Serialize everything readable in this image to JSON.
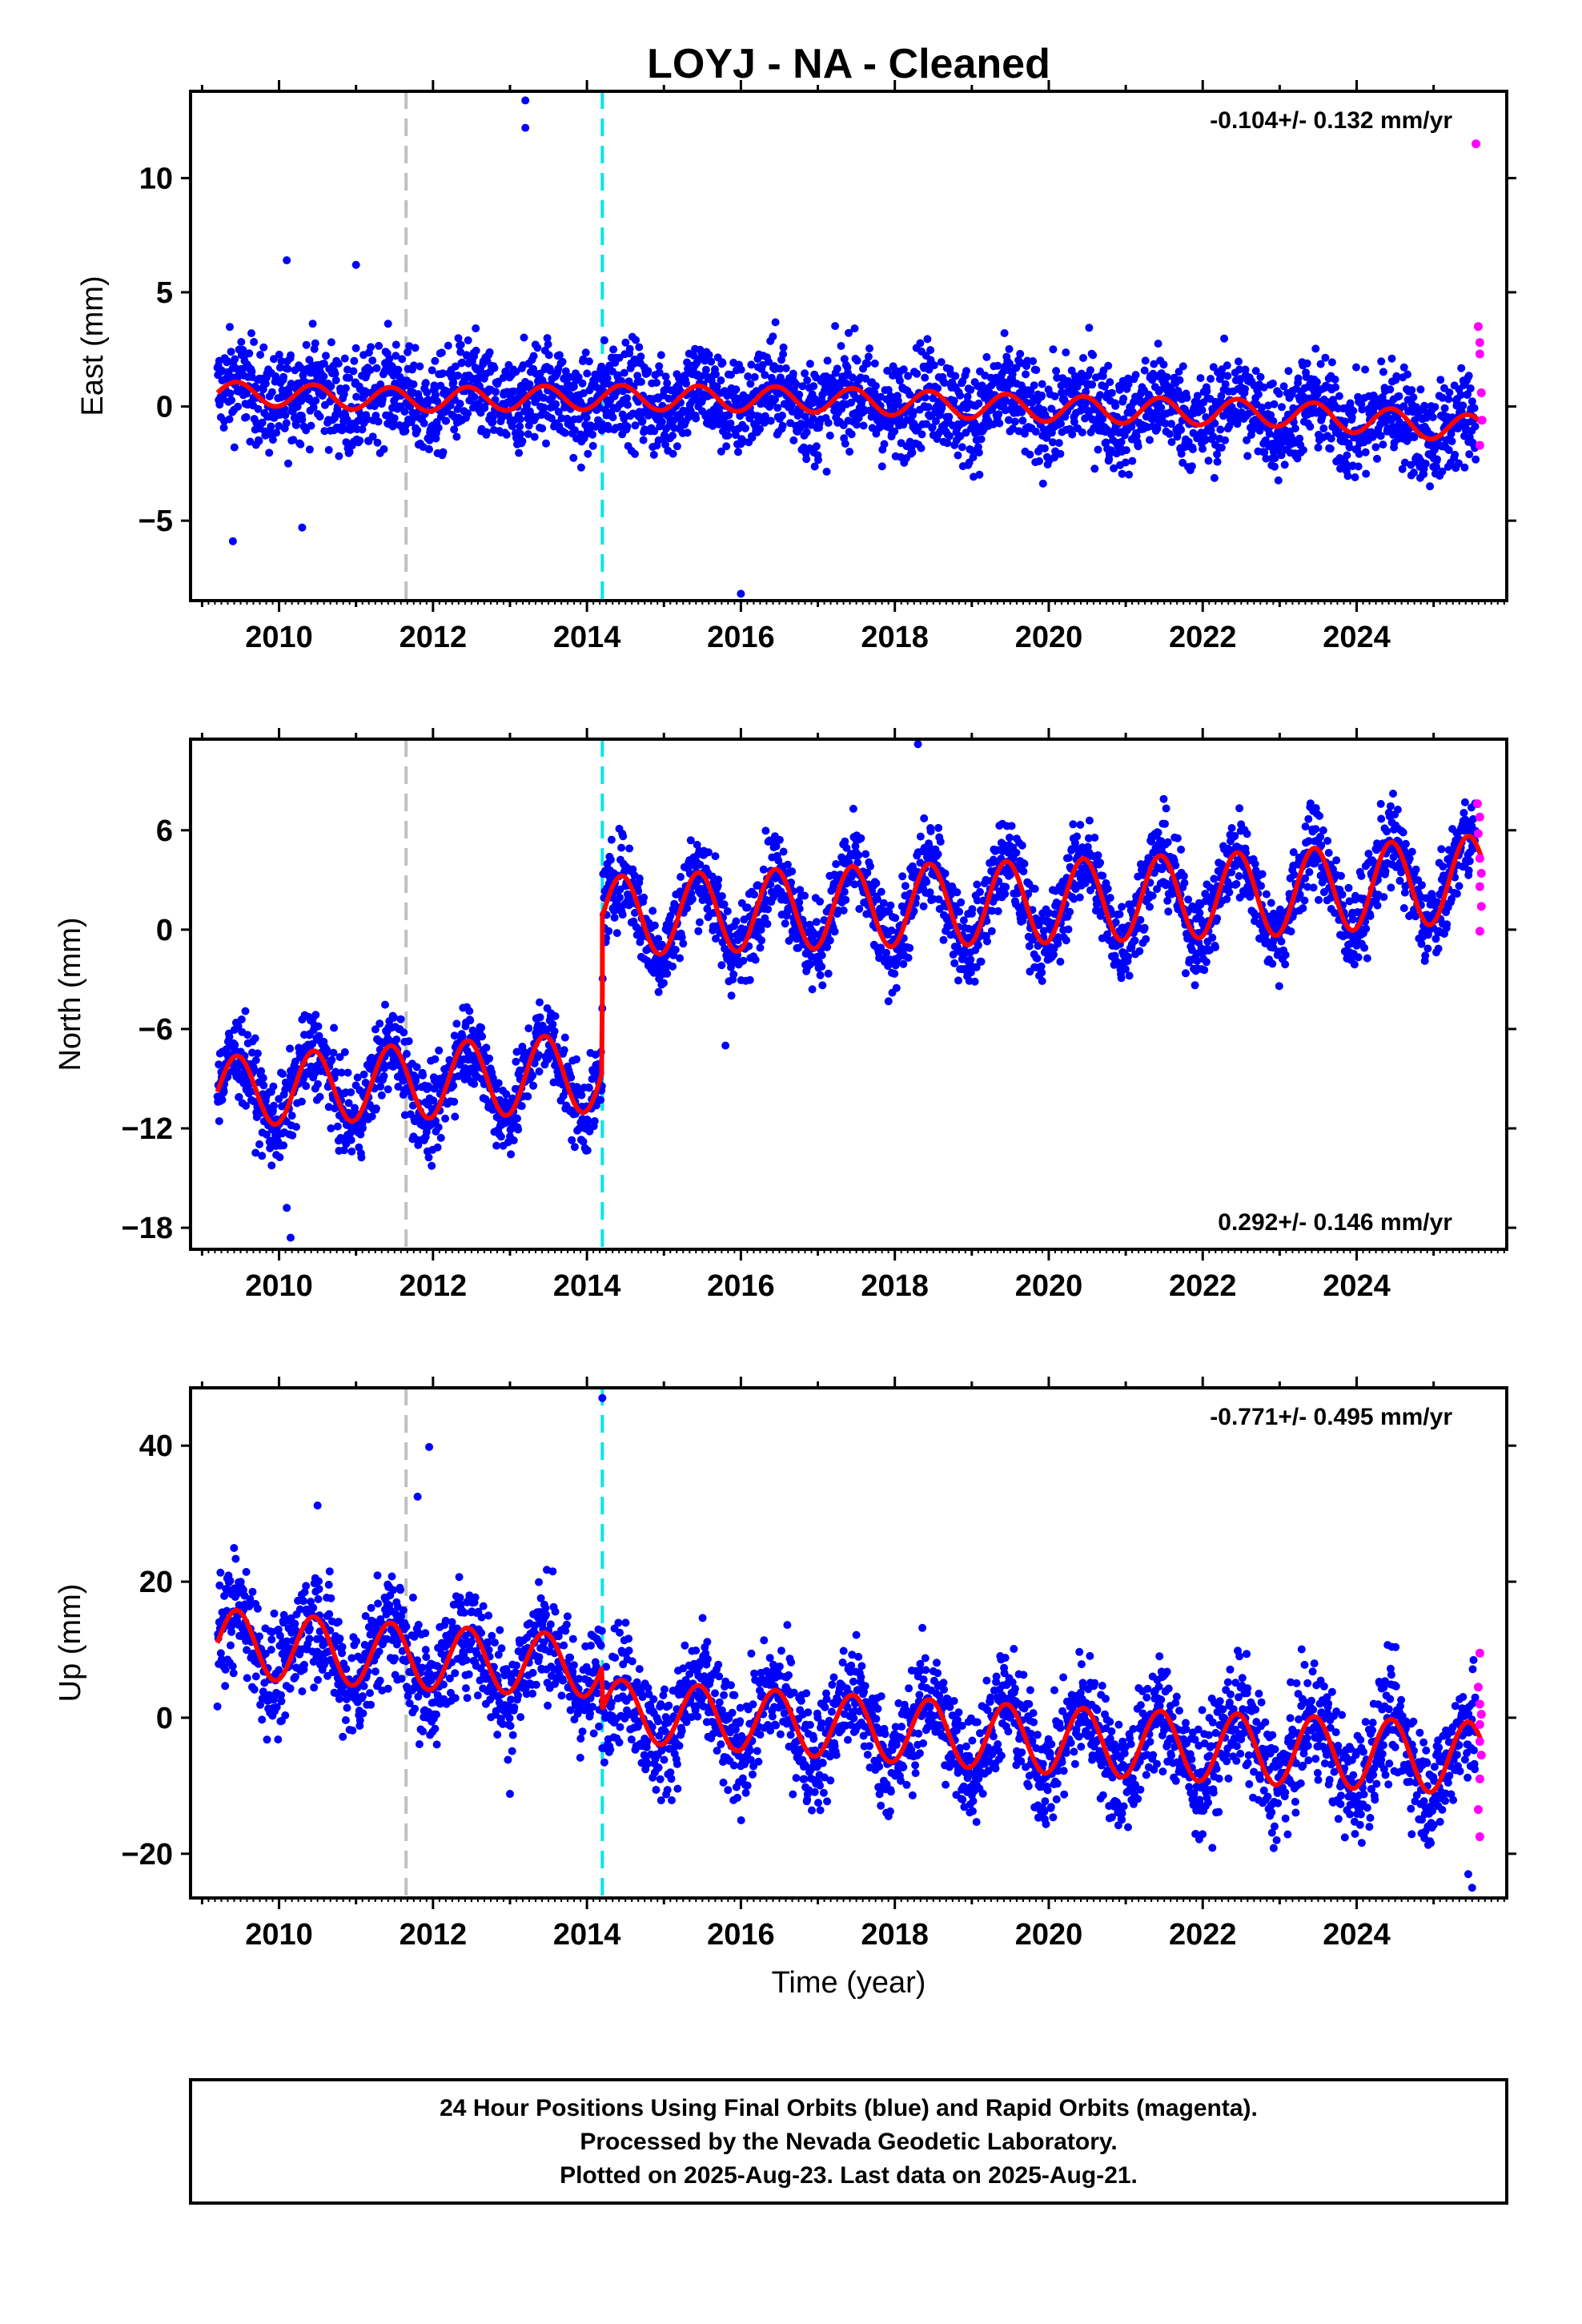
{
  "title": "LOYJ  - NA - Cleaned",
  "xlabel": "Time (year)",
  "footer": {
    "line1": "24 Hour Positions Using Final Orbits (blue) and Rapid Orbits (magenta).",
    "line2": "Processed by the Nevada Geodetic Laboratory.",
    "line3": "Plotted on 2025-Aug-23. Last data on 2025-Aug-21."
  },
  "colors": {
    "final": "#0000ff",
    "rapid": "#ff00ff",
    "model": "#ff0000",
    "event_gray": "#c0c0c0",
    "event_cyan": "#00e5ee"
  },
  "chart_data": [
    {
      "type": "scatter",
      "component": "East",
      "ylabel": "East (mm)",
      "rate": "-0.104+/- 0.132 mm/yr",
      "xlim": [
        2008.85,
        2025.95
      ],
      "ylim": [
        -8.5,
        13.8
      ],
      "xticks": [
        2010,
        2012,
        2014,
        2016,
        2018,
        2020,
        2022,
        2024
      ],
      "xtick_labels": [
        "2010",
        "2012",
        "2014",
        "2016",
        "2018",
        "2020",
        "2022",
        "2024"
      ],
      "yticks": [
        10,
        5,
        0,
        -5
      ],
      "ytick_labels": [
        "10",
        "5",
        "0",
        "−5"
      ],
      "event_lines": [
        {
          "x": 2011.65,
          "color": "gray"
        },
        {
          "x": 2014.2,
          "color": "cyan"
        }
      ],
      "model_keys": [
        [
          2009.2,
          0.6
        ],
        [
          2011.65,
          0.3
        ],
        [
          2014.2,
          0.4
        ],
        [
          2017.0,
          0.3
        ],
        [
          2020.0,
          -0.1
        ],
        [
          2023.0,
          -0.3
        ],
        [
          2025.6,
          -1.0
        ]
      ],
      "amp_keys": [
        [
          2009.2,
          0.5
        ],
        [
          2016.0,
          0.55
        ],
        [
          2025.6,
          0.6
        ]
      ],
      "noise": 1.1,
      "outliers": [
        [
          2013.2,
          13.4
        ],
        [
          2013.2,
          12.2
        ],
        [
          2009.4,
          -5.9
        ],
        [
          2016.0,
          -8.2
        ],
        [
          2010.3,
          -5.3
        ],
        [
          2010.1,
          6.4
        ],
        [
          2011.0,
          6.2
        ]
      ],
      "rapid_keys": [
        [
          2025.55,
          11.5
        ],
        [
          2025.58,
          3.5
        ],
        [
          2025.6,
          2.8
        ],
        [
          2025.6,
          2.3
        ],
        [
          2025.62,
          0.6
        ],
        [
          2025.63,
          -0.6
        ],
        [
          2025.6,
          -1.7
        ]
      ]
    },
    {
      "type": "scatter",
      "component": "North",
      "ylabel": "North (mm)",
      "rate": "0.292+/- 0.146 mm/yr",
      "xlim": [
        2008.85,
        2025.95
      ],
      "ylim": [
        -19.3,
        11.5
      ],
      "xticks": [
        2010,
        2012,
        2014,
        2016,
        2018,
        2020,
        2022,
        2024
      ],
      "xtick_labels": [
        "2010",
        "2012",
        "2014",
        "2016",
        "2018",
        "2020",
        "2022",
        "2024"
      ],
      "yticks": [
        6,
        0,
        -6,
        -12,
        -18
      ],
      "ytick_labels": [
        "6",
        "0",
        "−6",
        "−12",
        "−18"
      ],
      "event_lines": [
        {
          "x": 2011.65,
          "color": "gray"
        },
        {
          "x": 2014.2,
          "color": "cyan"
        }
      ],
      "offset_at": 2014.2,
      "model_keys": [
        [
          2009.2,
          -9.8
        ],
        [
          2011.65,
          -9.2
        ],
        [
          2014.19,
          -8.6
        ],
        [
          2014.21,
          0.8
        ],
        [
          2017.0,
          1.3
        ],
        [
          2020.0,
          1.7
        ],
        [
          2023.0,
          2.2
        ],
        [
          2025.6,
          3.1
        ]
      ],
      "amp_keys": [
        [
          2009.2,
          2.1
        ],
        [
          2014.19,
          2.4
        ],
        [
          2014.21,
          2.4
        ],
        [
          2025.6,
          2.6
        ]
      ],
      "noise": 1.3,
      "outliers": [
        [
          2018.3,
          11.2
        ],
        [
          2010.15,
          -18.6
        ],
        [
          2010.1,
          -16.8
        ],
        [
          2015.8,
          -7.0
        ]
      ],
      "rapid_keys": [
        [
          2025.57,
          7.6
        ],
        [
          2025.6,
          6.8
        ],
        [
          2025.58,
          5.8
        ],
        [
          2025.6,
          4.3
        ],
        [
          2025.62,
          3.4
        ],
        [
          2025.6,
          2.6
        ],
        [
          2025.62,
          1.4
        ],
        [
          2025.6,
          -0.1
        ]
      ]
    },
    {
      "type": "scatter",
      "component": "Up",
      "ylabel": "Up (mm)",
      "rate": "-0.771+/- 0.495 mm/yr",
      "xlim": [
        2008.85,
        2025.95
      ],
      "ylim": [
        -26.5,
        48.5
      ],
      "xticks": [
        2010,
        2012,
        2014,
        2016,
        2018,
        2020,
        2022,
        2024
      ],
      "xtick_labels": [
        "2010",
        "2012",
        "2014",
        "2016",
        "2018",
        "2020",
        "2022",
        "2024"
      ],
      "yticks": [
        40,
        20,
        0,
        -20
      ],
      "ytick_labels": [
        "40",
        "20",
        "0",
        "−20"
      ],
      "event_lines": [
        {
          "x": 2011.65,
          "color": "gray"
        },
        {
          "x": 2014.2,
          "color": "cyan"
        }
      ],
      "offset_at": 2014.2,
      "model_keys": [
        [
          2009.2,
          11.0
        ],
        [
          2011.65,
          9.0
        ],
        [
          2014.19,
          7.5
        ],
        [
          2014.21,
          1.2
        ],
        [
          2016.0,
          -0.3
        ],
        [
          2018.0,
          -1.8
        ],
        [
          2020.0,
          -3.3
        ],
        [
          2022.0,
          -4.3
        ],
        [
          2025.6,
          -6.0
        ]
      ],
      "amp_keys": [
        [
          2009.2,
          5.0
        ],
        [
          2014.19,
          4.5
        ],
        [
          2014.21,
          4.5
        ],
        [
          2025.6,
          5.3
        ]
      ],
      "noise": 4.2,
      "outliers": [
        [
          2014.2,
          47.0
        ],
        [
          2011.95,
          39.8
        ],
        [
          2011.8,
          32.5
        ],
        [
          2010.5,
          31.2
        ],
        [
          2013.0,
          -11.2
        ],
        [
          2025.5,
          -25.0
        ],
        [
          2025.45,
          -23.0
        ]
      ],
      "rapid_keys": [
        [
          2025.6,
          9.5
        ],
        [
          2025.58,
          4.5
        ],
        [
          2025.6,
          2.0
        ],
        [
          2025.62,
          0.5
        ],
        [
          2025.6,
          -1.0
        ],
        [
          2025.6,
          -3.5
        ],
        [
          2025.62,
          -5.5
        ],
        [
          2025.6,
          -9.0
        ],
        [
          2025.58,
          -13.5
        ],
        [
          2025.6,
          -17.5
        ]
      ]
    }
  ]
}
